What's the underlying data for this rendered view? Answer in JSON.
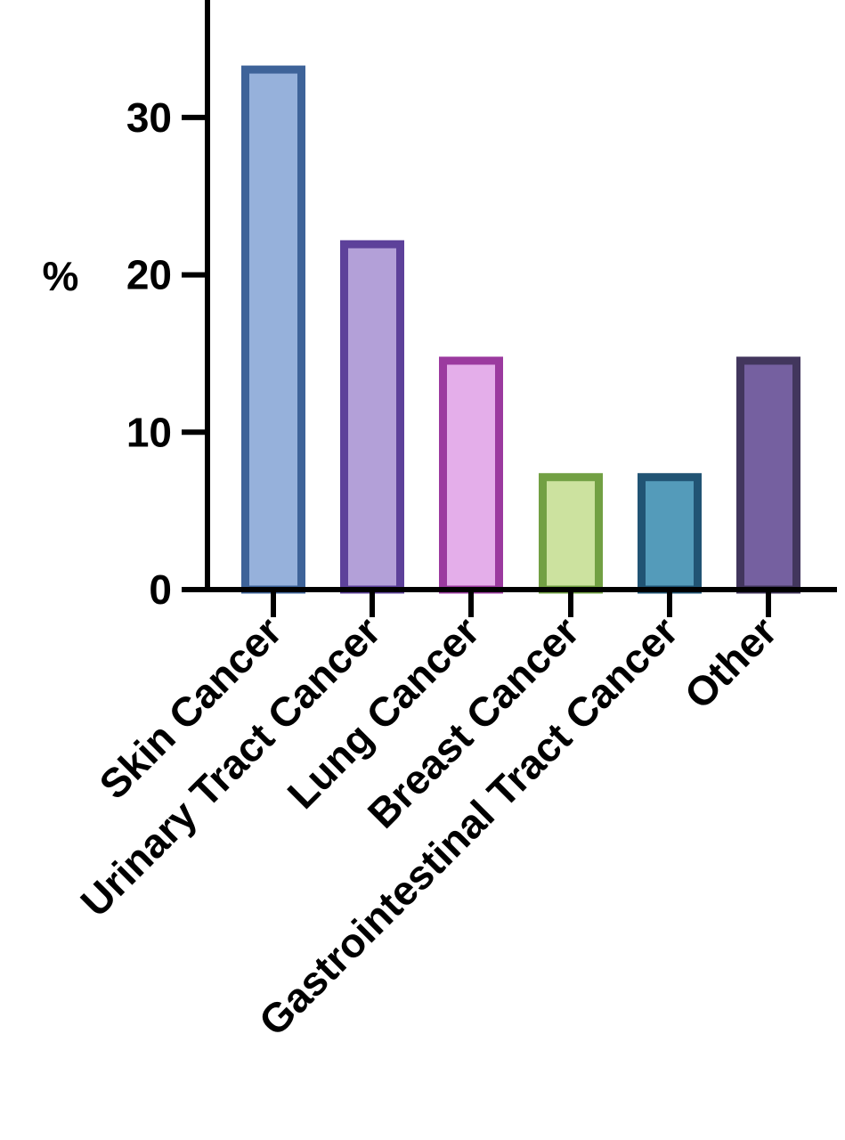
{
  "chart_data": {
    "type": "bar",
    "title": "",
    "xlabel": "",
    "ylabel": "%",
    "ylim": [
      0,
      37
    ],
    "yticks": [
      0,
      10,
      20,
      30
    ],
    "grid": false,
    "legend": null,
    "categories": [
      "Skin Cancer",
      "Urinary Tract Cancer",
      "Lung Cancer",
      "Breast Cancer",
      "Gastrointestinal Tract Cancer",
      "Other"
    ],
    "values": [
      33.3,
      22.2,
      14.8,
      7.4,
      7.4,
      14.8
    ],
    "bar_colors": [
      {
        "fill": "#96b1db",
        "stroke": "#3e6399"
      },
      {
        "fill": "#b3a0d8",
        "stroke": "#5d419a"
      },
      {
        "fill": "#e4aeea",
        "stroke": "#9b3a9f"
      },
      {
        "fill": "#cce29f",
        "stroke": "#72a043"
      },
      {
        "fill": "#549bba",
        "stroke": "#215474"
      },
      {
        "fill": "#7560a0",
        "stroke": "#42365d"
      }
    ]
  }
}
